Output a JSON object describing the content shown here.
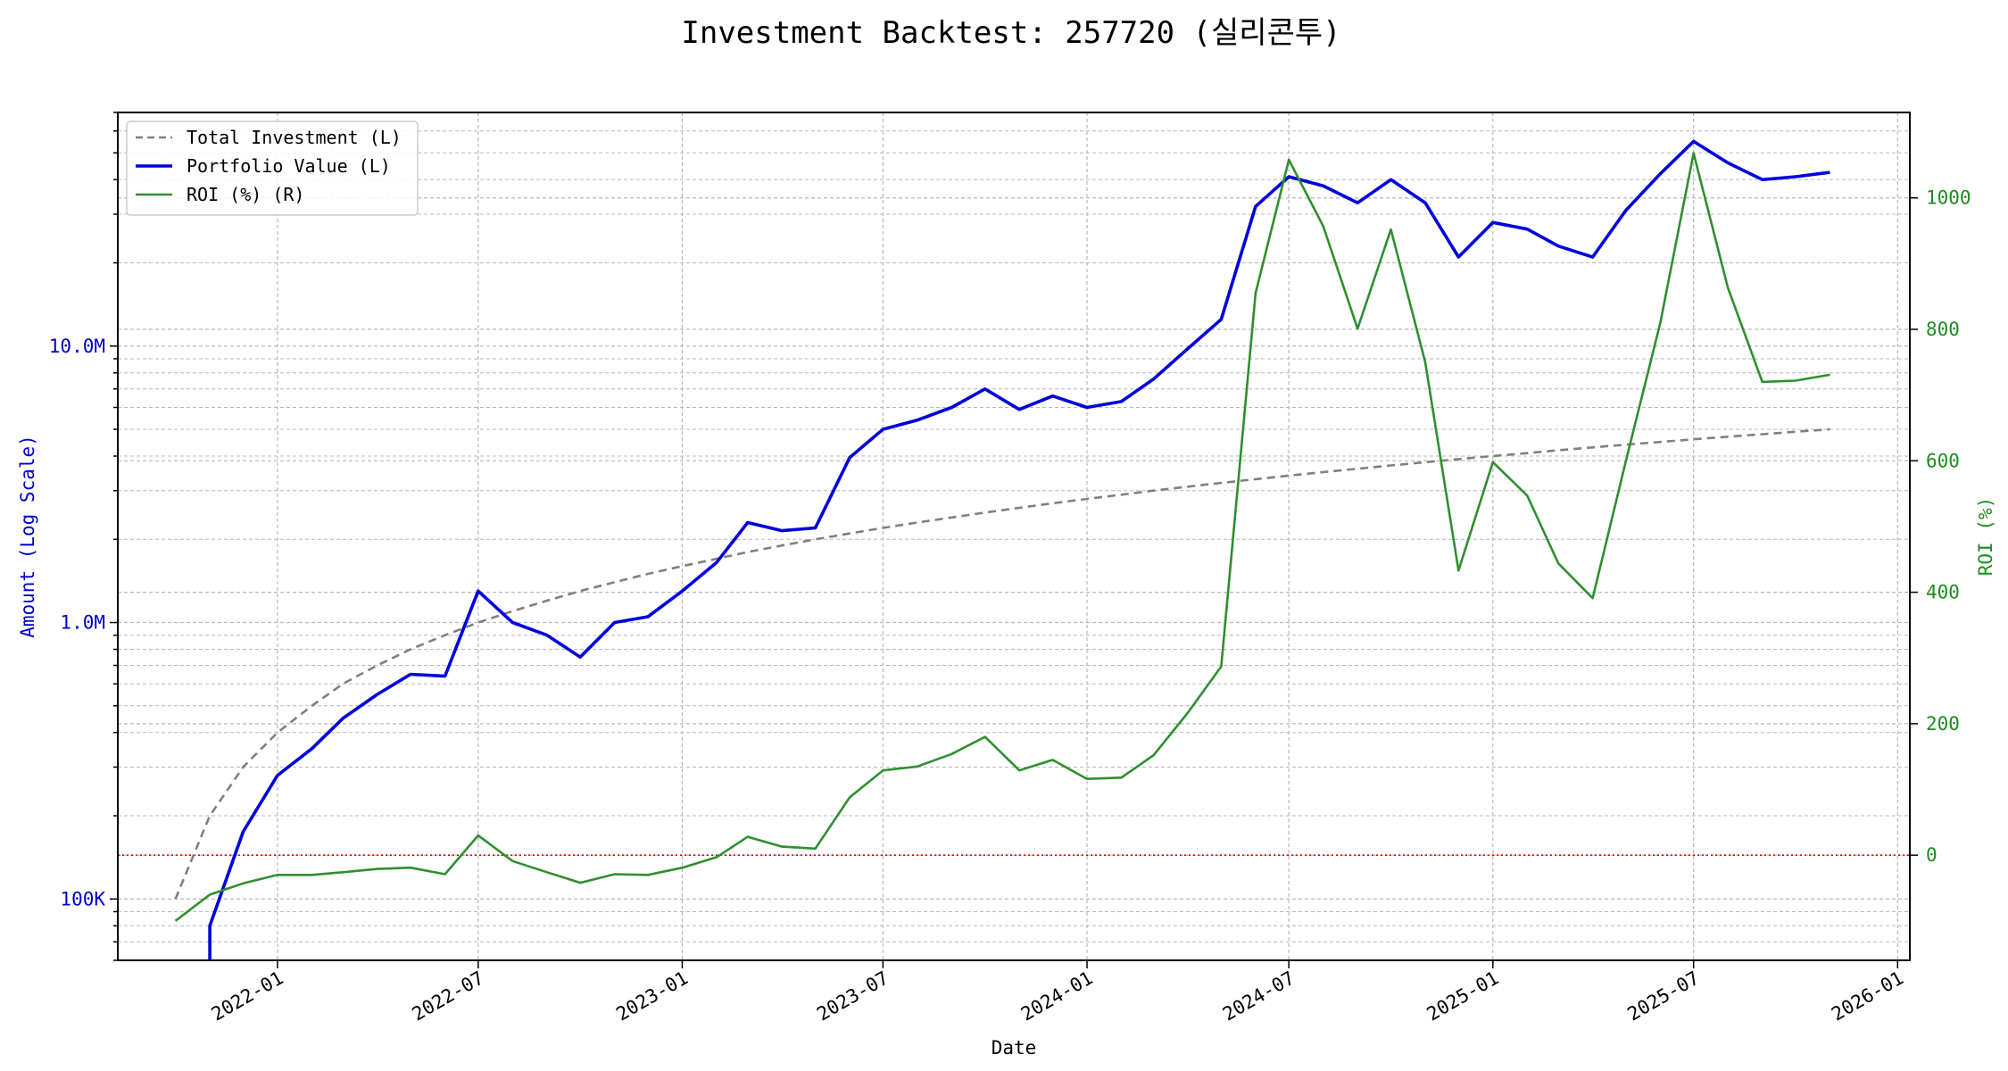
{
  "chart_data": {
    "type": "line",
    "title": "Investment Backtest: 257720 (실리콘투)",
    "xlabel": "Date",
    "ylabel_left": "Amount (Log Scale)",
    "ylabel_right": "ROI (%)",
    "x_scale": "time",
    "y_left_scale": "log",
    "ylim_left": [
      60000,
      70000000
    ],
    "ylim_right": [
      -160,
      1130
    ],
    "xlim": [
      "2021-08-10",
      "2026-01-12"
    ],
    "grid": true,
    "legend_position": "top-left",
    "x_ticks": [
      "2022-01",
      "2022-07",
      "2023-01",
      "2023-07",
      "2024-01",
      "2024-07",
      "2025-01",
      "2025-07",
      "2026-01"
    ],
    "y_left_ticks": [
      {
        "value": 100000,
        "label": "100K"
      },
      {
        "value": 1000000,
        "label": "1.0M"
      },
      {
        "value": 10000000,
        "label": "10.0M"
      }
    ],
    "y_right_ticks": [
      0,
      200,
      400,
      600,
      800,
      1000
    ],
    "reference_line": {
      "axis": "right",
      "value": 0,
      "color": "#dd0000",
      "style": "dotted"
    },
    "colors": {
      "total_investment": "#808080",
      "portfolio": "#0000dd",
      "roi": "#2f8f2f",
      "left_axis": "#0000cc",
      "right_axis": "#1e8b1e"
    },
    "dates": [
      "2021-10-01",
      "2021-11-01",
      "2021-12-01",
      "2022-01-01",
      "2022-02-01",
      "2022-03-01",
      "2022-04-01",
      "2022-05-01",
      "2022-06-01",
      "2022-07-01",
      "2022-08-01",
      "2022-09-01",
      "2022-10-01",
      "2022-11-01",
      "2022-12-01",
      "2023-01-01",
      "2023-02-01",
      "2023-03-01",
      "2023-04-01",
      "2023-05-01",
      "2023-06-01",
      "2023-07-01",
      "2023-08-01",
      "2023-09-01",
      "2023-10-01",
      "2023-11-01",
      "2023-12-01",
      "2024-01-01",
      "2024-02-01",
      "2024-03-01",
      "2024-04-01",
      "2024-05-01",
      "2024-06-01",
      "2024-07-01",
      "2024-08-01",
      "2024-09-01",
      "2024-10-01",
      "2024-11-01",
      "2024-12-01",
      "2025-01-01",
      "2025-02-01",
      "2025-03-01",
      "2025-04-01",
      "2025-05-01",
      "2025-06-01",
      "2025-07-01",
      "2025-08-01",
      "2025-09-01",
      "2025-10-01",
      "2025-11-01"
    ],
    "series": [
      {
        "name": "Total Investment (L)",
        "axis": "left",
        "style": "dashed",
        "values": [
          100000,
          200000,
          300000,
          400000,
          500000,
          600000,
          700000,
          800000,
          900000,
          1000000,
          1100000,
          1200000,
          1300000,
          1400000,
          1500000,
          1600000,
          1700000,
          1800000,
          1900000,
          2000000,
          2100000,
          2200000,
          2300000,
          2400000,
          2500000,
          2600000,
          2700000,
          2800000,
          2900000,
          3000000,
          3100000,
          3200000,
          3300000,
          3400000,
          3500000,
          3600000,
          3700000,
          3800000,
          3900000,
          4000000,
          4100000,
          4200000,
          4300000,
          4400000,
          4500000,
          4600000,
          4700000,
          4800000,
          4900000,
          5000000
        ]
      },
      {
        "name": "Portfolio Value (L)",
        "axis": "left",
        "style": "solid",
        "values": [
          null,
          80000,
          175000,
          280000,
          350000,
          450000,
          550000,
          650000,
          640000,
          1300000,
          1000000,
          900000,
          750000,
          1000000,
          1050000,
          1300000,
          1650000,
          2300000,
          2150000,
          2200000,
          3950000,
          5000000,
          5400000,
          6000000,
          7000000,
          5900000,
          6600000,
          6000000,
          6300000,
          7600000,
          9800000,
          12500000,
          32000000,
          41000000,
          38000000,
          33000000,
          40000000,
          33000000,
          21000000,
          28000000,
          26500000,
          23000000,
          21000000,
          31000000,
          42000000,
          55000000,
          46000000,
          40000000,
          41000000,
          42500000
        ]
      },
      {
        "name": "ROI (%) (R)",
        "axis": "right",
        "style": "solid",
        "values": [
          -100,
          -60,
          -43,
          -30,
          -30,
          -26,
          -21,
          -19,
          -29,
          30,
          -9,
          -26,
          -42,
          -29,
          -30,
          -19,
          -3,
          28,
          13,
          10,
          88,
          129,
          135,
          154,
          180,
          129,
          145,
          116,
          118,
          152,
          217,
          287,
          855,
          1058,
          957,
          801,
          952,
          750,
          433,
          598,
          547,
          444,
          391,
          600,
          810,
          1068,
          863,
          720,
          722,
          731
        ]
      }
    ]
  }
}
